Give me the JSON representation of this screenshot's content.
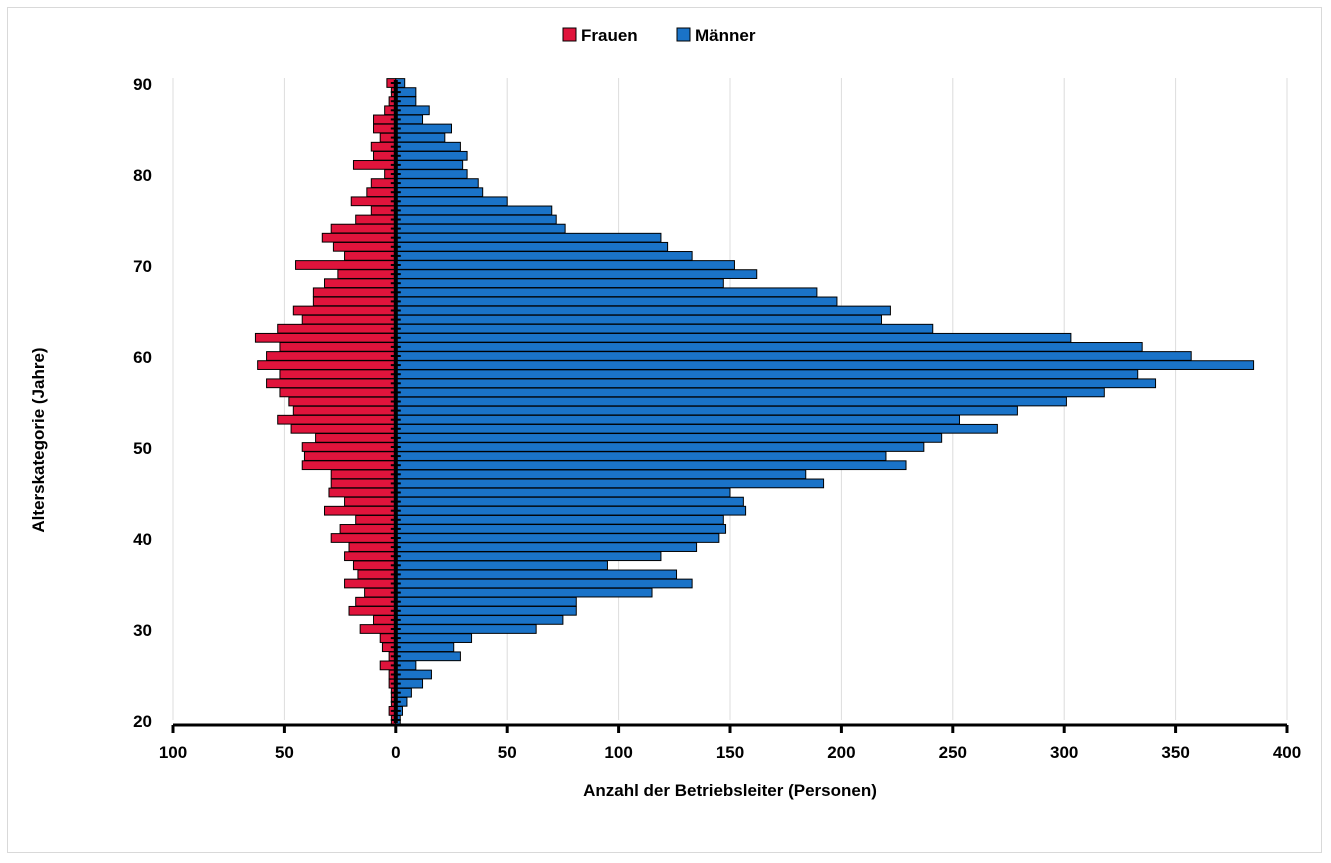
{
  "chart_data": {
    "type": "bar",
    "orientation": "horizontal-population-pyramid",
    "title": "",
    "xlabel": "Anzahl der Betriebsleiter (Personen)",
    "ylabel": "Alterskategorie (Jahre)",
    "xlim": [
      -100,
      400
    ],
    "ylim": [
      20,
      90
    ],
    "x_ticks": [
      -100,
      -50,
      0,
      50,
      100,
      150,
      200,
      250,
      300,
      350,
      400
    ],
    "x_tick_labels": [
      "100",
      "50",
      "0",
      "50",
      "100",
      "150",
      "200",
      "250",
      "300",
      "350",
      "400"
    ],
    "y_ticks": [
      20,
      30,
      40,
      50,
      60,
      70,
      80,
      90
    ],
    "y_tick_labels": [
      "20",
      "30",
      "40",
      "50",
      "60",
      "70",
      "80",
      "90"
    ],
    "grid": "vertical",
    "legend_position": "top-center",
    "categories": [
      20,
      21,
      22,
      23,
      24,
      25,
      26,
      27,
      28,
      29,
      30,
      31,
      32,
      33,
      34,
      35,
      36,
      37,
      38,
      39,
      40,
      41,
      42,
      43,
      44,
      45,
      46,
      47,
      48,
      49,
      50,
      51,
      52,
      53,
      54,
      55,
      56,
      57,
      58,
      59,
      60,
      61,
      62,
      63,
      64,
      65,
      66,
      67,
      68,
      69,
      70,
      71,
      72,
      73,
      74,
      75,
      76,
      77,
      78,
      79,
      80,
      81,
      82,
      83,
      84,
      85,
      86,
      87,
      88,
      89,
      90
    ],
    "series": [
      {
        "name": "Frauen",
        "color": "#e0143c",
        "values": [
          2,
          3,
          2,
          2,
          3,
          3,
          7,
          3,
          6,
          7,
          16,
          10,
          21,
          18,
          14,
          23,
          17,
          19,
          23,
          21,
          29,
          25,
          18,
          32,
          23,
          30,
          29,
          29,
          42,
          41,
          42,
          36,
          47,
          53,
          46,
          48,
          52,
          58,
          52,
          62,
          58,
          52,
          63,
          53,
          42,
          46,
          37,
          37,
          32,
          26,
          45,
          23,
          28,
          33,
          29,
          18,
          11,
          20,
          13,
          11,
          5,
          19,
          10,
          11,
          7,
          10,
          10,
          5,
          3,
          2,
          4
        ],
        "gap_below": 50
      },
      {
        "name": "Männer",
        "color": "#1a73c8",
        "values": [
          2,
          3,
          5,
          7,
          12,
          16,
          9,
          29,
          26,
          34,
          63,
          75,
          81,
          81,
          115,
          133,
          126,
          95,
          119,
          135,
          145,
          148,
          147,
          157,
          156,
          150,
          192,
          184,
          229,
          220,
          237,
          245,
          270,
          253,
          279,
          301,
          318,
          341,
          333,
          385,
          357,
          335,
          303,
          241,
          218,
          222,
          198,
          189,
          147,
          162,
          152,
          133,
          122,
          119,
          76,
          72,
          70,
          50,
          39,
          37,
          32,
          30,
          32,
          29,
          22,
          25,
          12,
          15,
          9,
          9,
          4
        ],
        "gap_below": 0
      }
    ]
  }
}
